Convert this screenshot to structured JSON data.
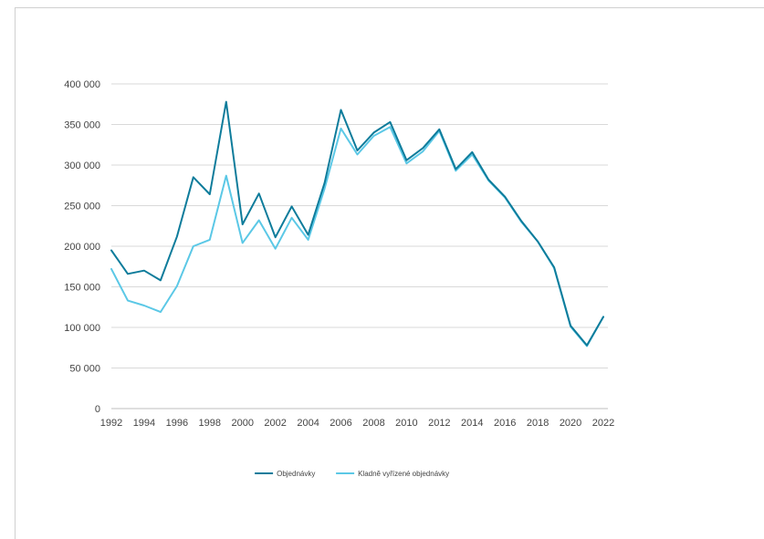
{
  "chart_data": {
    "type": "line",
    "title": "",
    "xlabel": "",
    "ylabel": "",
    "x": [
      1992,
      1993,
      1994,
      1995,
      1996,
      1997,
      1998,
      1999,
      2000,
      2001,
      2002,
      2003,
      2004,
      2005,
      2006,
      2007,
      2008,
      2009,
      2010,
      2011,
      2012,
      2013,
      2014,
      2015,
      2016,
      2017,
      2018,
      2019,
      2020,
      2021,
      2022
    ],
    "x_tick_labels": [
      "1992",
      "1994",
      "1996",
      "1998",
      "2000",
      "2002",
      "2004",
      "2006",
      "2008",
      "2010",
      "2012",
      "2014",
      "2016",
      "2018",
      "2020",
      "2022"
    ],
    "y_tick_labels": [
      "0",
      "50 000",
      "100 000",
      "150 000",
      "200 000",
      "250 000",
      "300 000",
      "350 000",
      "400 000"
    ],
    "ylim": [
      0,
      400000
    ],
    "grid": "horizontal",
    "legend_position": "bottom",
    "series": [
      {
        "name": "Objednávky",
        "color": "#0E7C9B",
        "values": [
          195000,
          166000,
          170000,
          158000,
          212000,
          285000,
          264000,
          378000,
          227000,
          265000,
          211000,
          249000,
          214000,
          278000,
          368000,
          318000,
          340000,
          353000,
          306000,
          321000,
          344000,
          295000,
          316000,
          282000,
          261000,
          231000,
          206000,
          174000,
          102000,
          78000,
          113000
        ]
      },
      {
        "name": "Kladně vyřízené objednávky",
        "color": "#5BC8E6",
        "values": [
          172000,
          133000,
          127000,
          119000,
          151000,
          200000,
          208000,
          287000,
          204000,
          232000,
          197000,
          235000,
          208000,
          271000,
          345000,
          313000,
          336000,
          347000,
          302000,
          317000,
          342000,
          293000,
          313000,
          281000,
          260000,
          230000,
          206000,
          173000,
          101000,
          77000,
          113000
        ]
      }
    ]
  }
}
